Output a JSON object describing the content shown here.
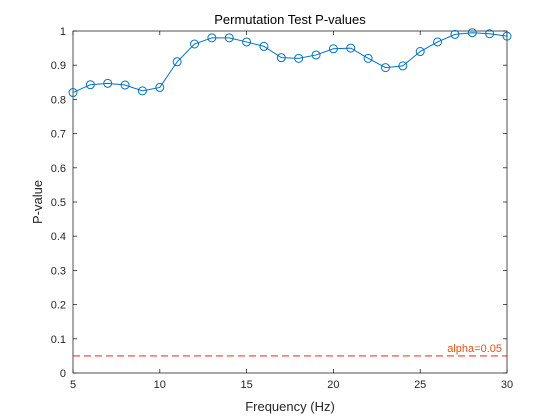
{
  "chart_data": {
    "type": "line",
    "title": "Permutation Test P-values",
    "xlabel": "Frequency (Hz)",
    "ylabel": "P-value",
    "xlim": [
      5,
      30
    ],
    "ylim": [
      0,
      1
    ],
    "xticks": [
      5,
      10,
      15,
      20,
      25,
      30
    ],
    "yticks": [
      0,
      0.1,
      0.2,
      0.3,
      0.4,
      0.5,
      0.6,
      0.7,
      0.8,
      0.9,
      1
    ],
    "ytick_labels": [
      "0",
      "0.1",
      "0.2",
      "0.3",
      "0.4",
      "0.5",
      "0.6",
      "0.7",
      "0.8",
      "0.9",
      "1"
    ],
    "grid": false,
    "series": [
      {
        "x": [
          5,
          6,
          7,
          8,
          9,
          10,
          11,
          12,
          13,
          14,
          15,
          16,
          17,
          18,
          19,
          20,
          21,
          22,
          23,
          24,
          25,
          26,
          27,
          28,
          29,
          30
        ],
        "values": [
          0.82,
          0.843,
          0.847,
          0.842,
          0.825,
          0.835,
          0.91,
          0.962,
          0.98,
          0.98,
          0.968,
          0.955,
          0.922,
          0.92,
          0.93,
          0.948,
          0.95,
          0.92,
          0.893,
          0.898,
          0.94,
          0.968,
          0.99,
          0.995,
          0.992,
          0.985
        ],
        "color": "#0072BD",
        "marker": "circle"
      }
    ],
    "threshold": {
      "value": 0.05,
      "label": "alpha=0.05",
      "color": "#D95319",
      "line_color": "#FF0000",
      "style": "dashed"
    }
  }
}
